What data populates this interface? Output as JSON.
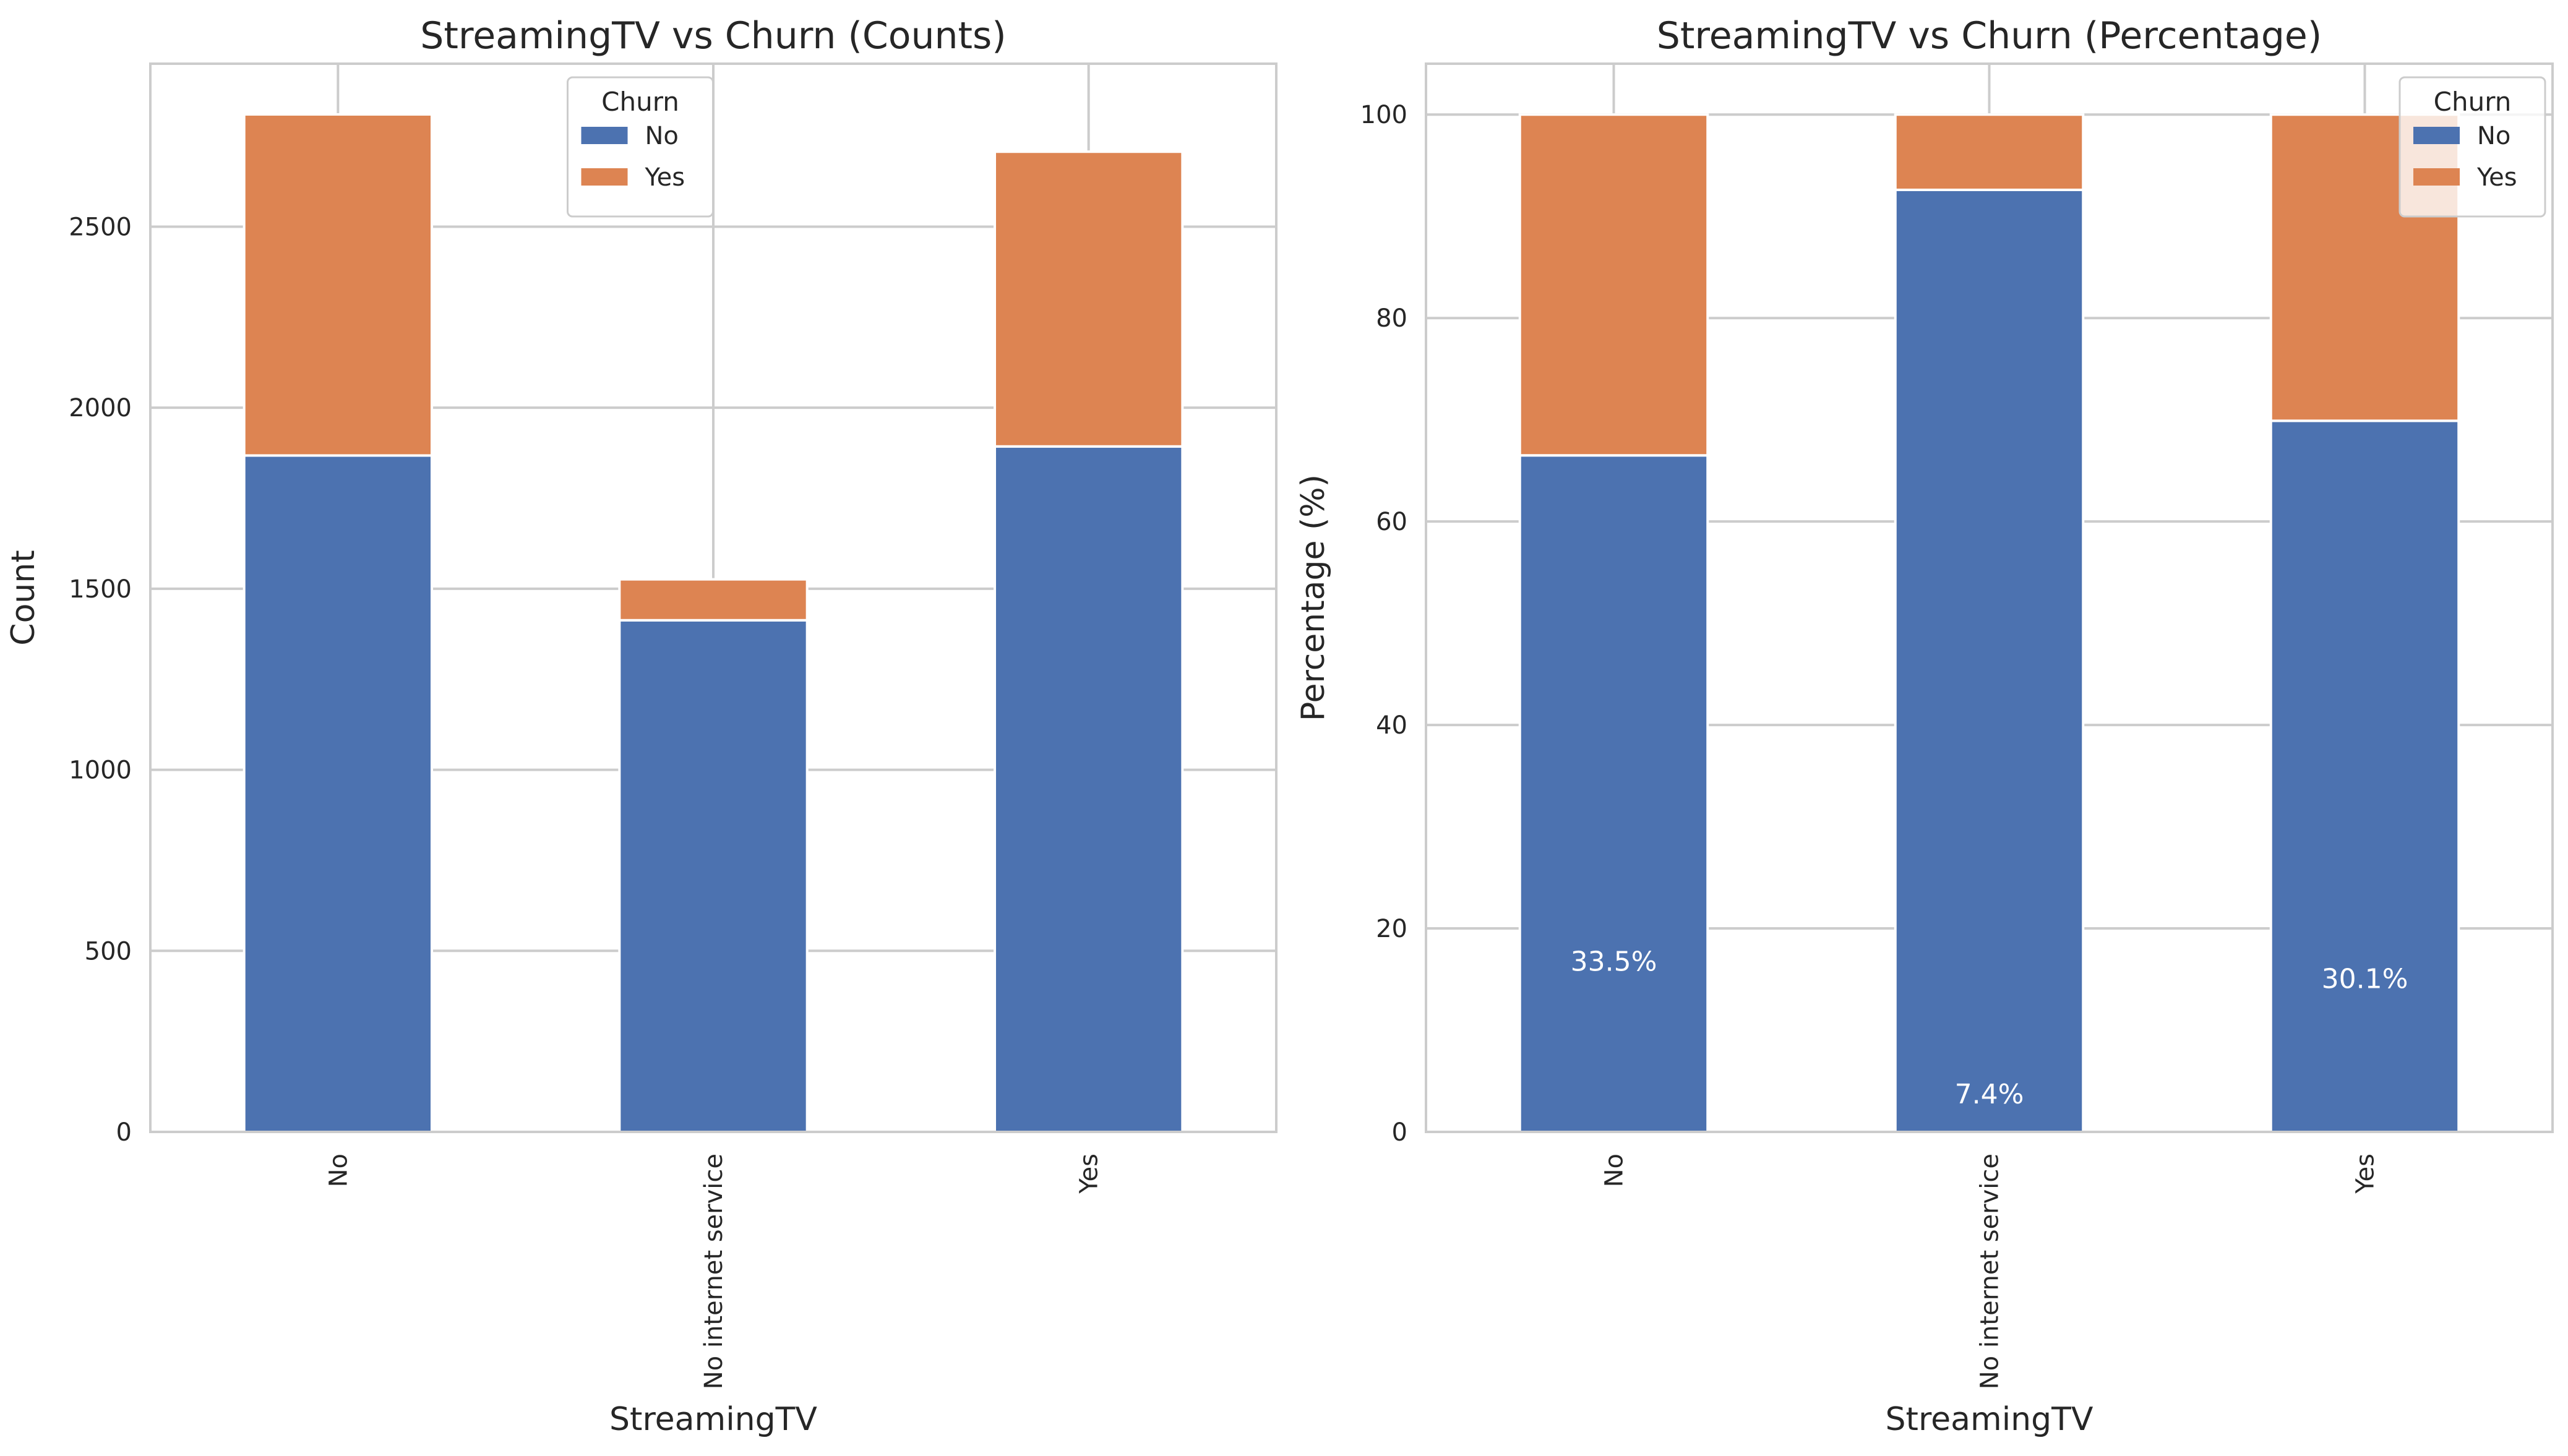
{
  "colors": {
    "no": "#4c72b0",
    "yes": "#dd8452"
  },
  "chart_data": [
    {
      "type": "bar",
      "stacked": true,
      "title": "StreamingTV vs Churn (Counts)",
      "xlabel": "StreamingTV",
      "ylabel": "Count",
      "categories": [
        "No",
        "No internet service",
        "Yes"
      ],
      "series": [
        {
          "name": "No",
          "values": [
            1868,
            1413,
            1893
          ]
        },
        {
          "name": "Yes",
          "values": [
            942,
            113,
            814
          ]
        }
      ],
      "ylim": [
        0,
        2950
      ],
      "yticks": [
        0,
        500,
        1000,
        1500,
        2000,
        2500
      ],
      "grid": true,
      "legend": {
        "title": "Churn",
        "placement": "upper center"
      },
      "bar_labels": []
    },
    {
      "type": "bar",
      "stacked": true,
      "title": "StreamingTV vs Churn (Percentage)",
      "xlabel": "StreamingTV",
      "ylabel": "Percentage (%)",
      "categories": [
        "No",
        "No internet service",
        "Yes"
      ],
      "series": [
        {
          "name": "No",
          "values": [
            66.5,
            92.6,
            69.9
          ]
        },
        {
          "name": "Yes",
          "values": [
            33.5,
            7.4,
            30.1
          ]
        }
      ],
      "ylim": [
        0,
        105
      ],
      "yticks": [
        0,
        20,
        40,
        60,
        80,
        100
      ],
      "grid": true,
      "legend": {
        "title": "Churn",
        "placement": "upper right"
      },
      "bar_labels": [
        "33.5%",
        "7.4%",
        "30.1%"
      ]
    }
  ]
}
